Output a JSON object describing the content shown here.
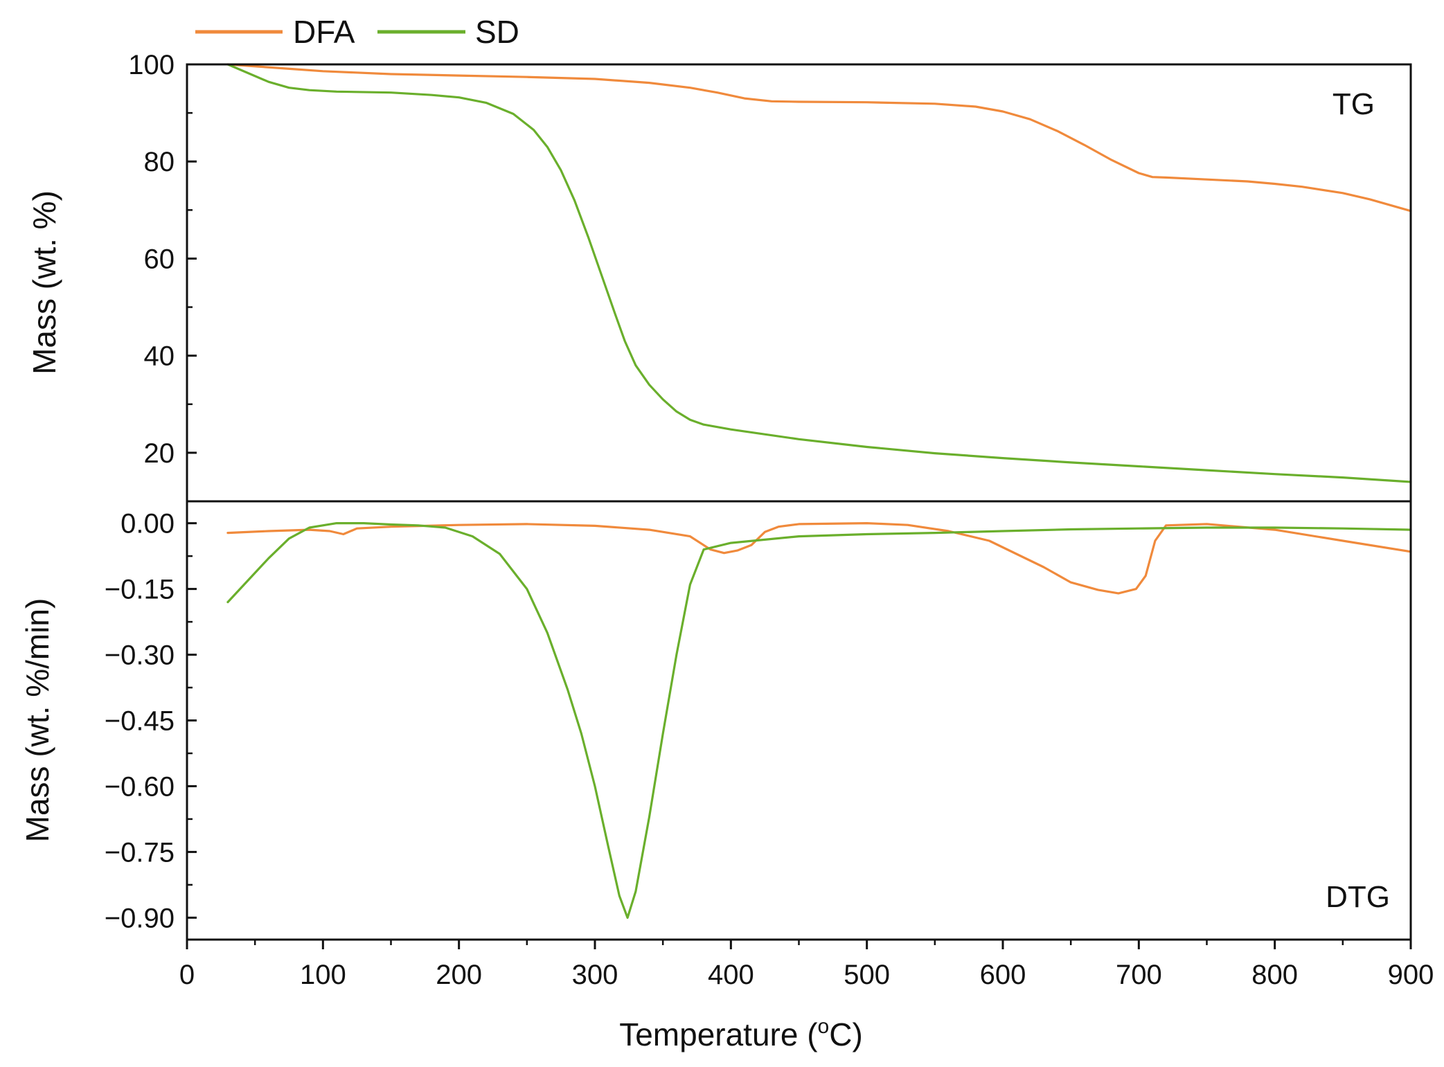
{
  "chart_data": [
    {
      "type": "line",
      "panel": "TG",
      "panel_label": "TG",
      "xlabel": "Temperature (°C)",
      "xlabel_main": "Temperature (",
      "xlabel_sup": "o",
      "xlabel_end": "C)",
      "ylabel": "Mass (wt. %)",
      "xlim": [
        0,
        900
      ],
      "ylim": [
        10,
        100
      ],
      "x_ticks": [
        0,
        100,
        200,
        300,
        400,
        500,
        600,
        700,
        800,
        900
      ],
      "x_tick_labels": [
        "0",
        "100",
        "200",
        "300",
        "400",
        "500",
        "600",
        "700",
        "800",
        "900"
      ],
      "y_ticks": [
        20,
        40,
        60,
        80,
        100
      ],
      "y_tick_labels": [
        "20",
        "40",
        "60",
        "80",
        "100"
      ],
      "series": [
        {
          "name": "DFA",
          "color": "#F08A3C",
          "x": [
            30,
            50,
            80,
            100,
            150,
            200,
            250,
            300,
            340,
            370,
            390,
            410,
            430,
            450,
            500,
            550,
            580,
            600,
            620,
            640,
            660,
            680,
            700,
            710,
            720,
            750,
            780,
            800,
            820,
            850,
            870,
            900
          ],
          "y": [
            100,
            99.6,
            99.0,
            98.6,
            98.0,
            97.7,
            97.4,
            97.0,
            96.2,
            95.2,
            94.2,
            93.0,
            92.4,
            92.3,
            92.2,
            91.9,
            91.3,
            90.3,
            88.7,
            86.3,
            83.4,
            80.3,
            77.6,
            76.8,
            76.7,
            76.3,
            75.9,
            75.4,
            74.8,
            73.5,
            72.2,
            69.8
          ]
        },
        {
          "name": "SD",
          "color": "#6AAF2C",
          "x": [
            30,
            45,
            60,
            75,
            90,
            110,
            150,
            180,
            200,
            220,
            240,
            255,
            265,
            275,
            285,
            295,
            305,
            315,
            322,
            330,
            340,
            350,
            360,
            370,
            380,
            400,
            450,
            500,
            550,
            600,
            650,
            700,
            750,
            800,
            850,
            900
          ],
          "y": [
            100,
            98.2,
            96.4,
            95.2,
            94.7,
            94.4,
            94.2,
            93.7,
            93.2,
            92.1,
            89.8,
            86.5,
            83.0,
            78.2,
            72.0,
            64.5,
            56.5,
            48.5,
            43.0,
            38.0,
            34.0,
            31.0,
            28.5,
            26.8,
            25.8,
            24.8,
            22.8,
            21.2,
            19.9,
            18.9,
            18.0,
            17.2,
            16.4,
            15.6,
            14.9,
            14.0
          ]
        }
      ]
    },
    {
      "type": "line",
      "panel": "DTG",
      "panel_label": "DTG",
      "xlabel": "Temperature (°C)",
      "ylabel": "Mass (wt. %/min)",
      "xlim": [
        0,
        900
      ],
      "ylim": [
        -0.95,
        0.05
      ],
      "x_ticks": [
        0,
        100,
        200,
        300,
        400,
        500,
        600,
        700,
        800,
        900
      ],
      "y_ticks": [
        0.0,
        -0.15,
        -0.3,
        -0.45,
        -0.6,
        -0.75,
        -0.9
      ],
      "y_tick_labels": [
        "0.00",
        "−0.15",
        "−0.30",
        "−0.45",
        "−0.60",
        "−0.75",
        "−0.90"
      ],
      "series": [
        {
          "name": "DFA",
          "color": "#F08A3C",
          "x": [
            30,
            60,
            90,
            105,
            115,
            125,
            150,
            200,
            250,
            300,
            340,
            370,
            385,
            395,
            405,
            415,
            425,
            435,
            450,
            500,
            530,
            560,
            590,
            610,
            630,
            650,
            670,
            685,
            698,
            705,
            712,
            720,
            750,
            800,
            850,
            900
          ],
          "y": [
            -0.022,
            -0.018,
            -0.015,
            -0.018,
            -0.025,
            -0.012,
            -0.008,
            -0.004,
            -0.002,
            -0.006,
            -0.015,
            -0.03,
            -0.06,
            -0.068,
            -0.062,
            -0.05,
            -0.02,
            -0.008,
            -0.002,
            0.0,
            -0.004,
            -0.018,
            -0.04,
            -0.07,
            -0.1,
            -0.135,
            -0.152,
            -0.16,
            -0.15,
            -0.12,
            -0.04,
            -0.005,
            -0.002,
            -0.015,
            -0.04,
            -0.065
          ]
        },
        {
          "name": "SD",
          "color": "#6AAF2C",
          "x": [
            30,
            45,
            60,
            75,
            90,
            110,
            130,
            150,
            170,
            190,
            210,
            230,
            250,
            265,
            280,
            290,
            300,
            310,
            318,
            324,
            330,
            340,
            350,
            360,
            370,
            380,
            400,
            450,
            500,
            550,
            600,
            650,
            700,
            750,
            800,
            850,
            900
          ],
          "y": [
            -0.18,
            -0.13,
            -0.08,
            -0.035,
            -0.01,
            0.0,
            0.0,
            -0.003,
            -0.005,
            -0.01,
            -0.03,
            -0.07,
            -0.15,
            -0.25,
            -0.38,
            -0.48,
            -0.6,
            -0.74,
            -0.85,
            -0.9,
            -0.84,
            -0.67,
            -0.48,
            -0.3,
            -0.14,
            -0.06,
            -0.045,
            -0.03,
            -0.025,
            -0.022,
            -0.018,
            -0.014,
            -0.012,
            -0.01,
            -0.01,
            -0.012,
            -0.015
          ]
        }
      ]
    }
  ],
  "legend": {
    "items": [
      {
        "label": "DFA",
        "color": "#F08A3C"
      },
      {
        "label": "SD",
        "color": "#6AAF2C"
      }
    ]
  }
}
